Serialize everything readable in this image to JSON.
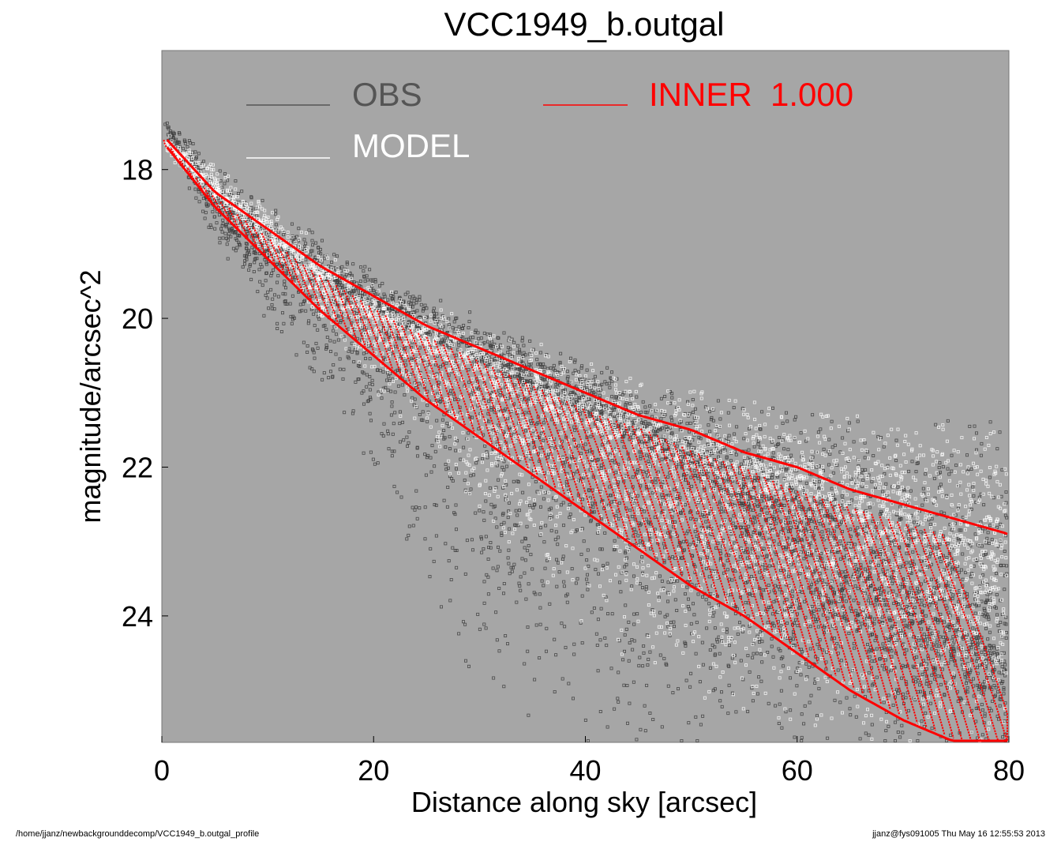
{
  "chart_data": {
    "type": "scatter",
    "title": "VCC1949_b.outgal",
    "xlabel": "Distance along sky [arcsec]",
    "ylabel": "magnitude/arcsec^2",
    "xlim": [
      0,
      80
    ],
    "ylim": [
      25.7,
      16.4
    ],
    "y_inverted": true,
    "xticks": [
      0,
      20,
      40,
      60,
      80
    ],
    "xtick_labels": [
      "0",
      "20",
      "40",
      "60",
      "80"
    ],
    "yticks": [
      18,
      20,
      22,
      24
    ],
    "ytick_labels": [
      "18",
      "20",
      "22",
      "24"
    ],
    "background_color": "#a6a6a6",
    "legend_position": "top",
    "legend": [
      {
        "label": "OBS",
        "color": "#555555"
      },
      {
        "label": "INNER  1.000",
        "color": "#ff0000"
      },
      {
        "label": "MODEL",
        "color": "#ffffff"
      }
    ],
    "series": [
      {
        "name": "OBS",
        "color": "#404040",
        "marker": "open-square",
        "trend_x": [
          0,
          1,
          5,
          10,
          20,
          30,
          40,
          50,
          60,
          70,
          80
        ],
        "trend_y": [
          17.3,
          17.6,
          18.4,
          19.1,
          19.9,
          20.6,
          21.3,
          22.1,
          23.0,
          23.8,
          24.5
        ],
        "upper_envelope_y": [
          17.3,
          17.4,
          18.0,
          18.5,
          19.4,
          20.0,
          20.6,
          21.1,
          21.3,
          21.4,
          21.4
        ],
        "lower_envelope_y": [
          17.4,
          17.8,
          18.9,
          20.0,
          22.0,
          25.1,
          25.7,
          25.7,
          25.7,
          25.7,
          25.7
        ]
      },
      {
        "name": "MODEL",
        "color": "#ffffff",
        "marker": "open-square",
        "trend_x": [
          0,
          10,
          20,
          30,
          40,
          50,
          60,
          70,
          80
        ],
        "trend_y": [
          17.6,
          18.9,
          20.0,
          20.8,
          21.5,
          22.0,
          22.5,
          23.0,
          23.4
        ],
        "upper_envelope_y": [
          17.5,
          18.5,
          19.6,
          20.1,
          20.6,
          21.0,
          21.3,
          21.4,
          21.4
        ],
        "lower_envelope_y": [
          17.7,
          19.2,
          20.9,
          22.6,
          24.2,
          25.0,
          25.5,
          25.7,
          25.7
        ]
      },
      {
        "name": "INNER  1.000",
        "color": "#ff0000",
        "marker": "open-square",
        "x": [
          0.5,
          5,
          10,
          15,
          20,
          25,
          30,
          35,
          40,
          45,
          50,
          55,
          60,
          65,
          70,
          75,
          80
        ],
        "upper_y": [
          17.6,
          18.3,
          18.8,
          19.3,
          19.7,
          20.1,
          20.4,
          20.7,
          21.0,
          21.3,
          21.5,
          21.8,
          22.0,
          22.3,
          22.5,
          22.7,
          22.9
        ],
        "lower_y": [
          17.7,
          18.5,
          19.2,
          19.9,
          20.5,
          21.1,
          21.6,
          22.1,
          22.6,
          23.1,
          23.6,
          24.0,
          24.5,
          25.0,
          25.4,
          25.7,
          25.7
        ]
      }
    ]
  },
  "footer": {
    "left": "/home/jjanz/newbackgrounddecomp/VCC1949_b.outgal_profile",
    "right": "jjanz@fys091005  Thu May 16 12:55:53 2013"
  }
}
